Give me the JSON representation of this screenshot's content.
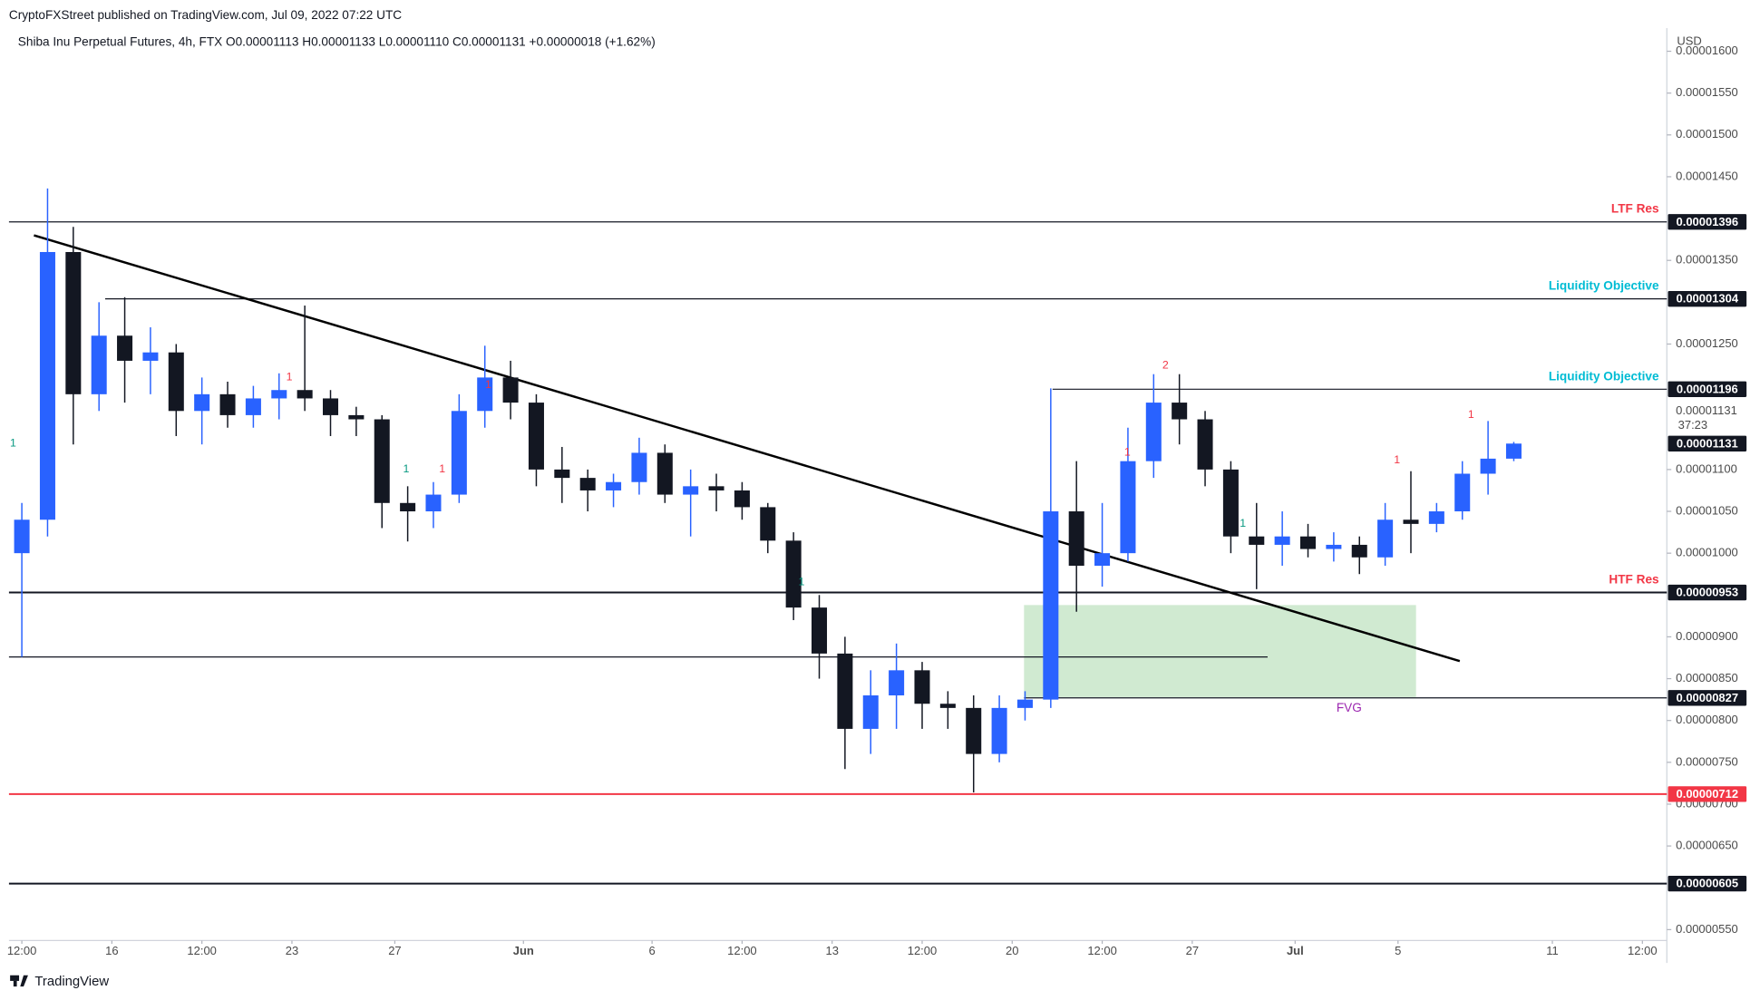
{
  "published": "CryptoFXStreet published on TradingView.com, Jul 09, 2022 07:22 UTC",
  "footer": "TradingView",
  "chart_data": {
    "type": "candlestick",
    "title": "Shiba Inu Perpetual Futures, 4h, FTX  O0.00001113  H0.00001133  L0.00001110  C0.00001131  +0.00000018 (+1.62%)",
    "currency": "USD",
    "up_color": "#2962ff",
    "down_color": "#131722",
    "grid": false,
    "xlim": [
      0,
      64.45
    ],
    "xticks": [
      {
        "value": 0.5,
        "label": "12:00"
      },
      {
        "value": 4,
        "label": "16"
      },
      {
        "value": 7.5,
        "label": "12:00"
      },
      {
        "value": 11,
        "label": "23"
      },
      {
        "value": 15,
        "label": "27"
      },
      {
        "value": 20,
        "label": "Jun"
      },
      {
        "value": 25,
        "label": "6"
      },
      {
        "value": 28.5,
        "label": "12:00"
      },
      {
        "value": 32,
        "label": "13"
      },
      {
        "value": 35.5,
        "label": "12:00"
      },
      {
        "value": 39,
        "label": "20"
      },
      {
        "value": 42.5,
        "label": "12:00"
      },
      {
        "value": 46,
        "label": "27"
      },
      {
        "value": 50,
        "label": "Jul"
      },
      {
        "value": 54,
        "label": "5"
      },
      {
        "value": 60,
        "label": "11"
      },
      {
        "value": 63.5,
        "label": "12:00"
      }
    ],
    "ylim": [
      5.37e-06,
      1.621e-05
    ],
    "yticks": [
      {
        "value": 1.6e-05,
        "label": "0.00001600"
      },
      {
        "value": 1.55e-05,
        "label": "0.00001550"
      },
      {
        "value": 1.5e-05,
        "label": "0.00001500"
      },
      {
        "value": 1.45e-05,
        "label": "0.00001450"
      },
      {
        "value": 1.35e-05,
        "label": "0.00001350"
      },
      {
        "value": 1.25e-05,
        "label": "0.00001250"
      },
      {
        "value": 1.1e-05,
        "label": "0.00001100"
      },
      {
        "value": 1.05e-05,
        "label": "0.00001050"
      },
      {
        "value": 1e-05,
        "label": "0.00001000"
      },
      {
        "value": 9e-06,
        "label": "0.00000900"
      },
      {
        "value": 8.5e-06,
        "label": "0.00000850"
      },
      {
        "value": 8e-06,
        "label": "0.00000800"
      },
      {
        "value": 7.5e-06,
        "label": "0.00000750"
      },
      {
        "value": 7e-06,
        "label": "0.00000700"
      },
      {
        "value": 6.5e-06,
        "label": "0.00000650"
      },
      {
        "value": 5.5e-06,
        "label": "0.00000550"
      }
    ],
    "open": [
      1e-05,
      1.04e-05,
      1.36e-05,
      1.19e-05,
      1.26e-05,
      1.23e-05,
      1.24e-05,
      1.17e-05,
      1.19e-05,
      1.165e-05,
      1.185e-05,
      1.195e-05,
      1.185e-05,
      1.165e-05,
      1.16e-05,
      1.06e-05,
      1.05e-05,
      1.07e-05,
      1.17e-05,
      1.21e-05,
      1.18e-05,
      1.1e-05,
      1.09e-05,
      1.075e-05,
      1.085e-05,
      1.12e-05,
      1.07e-05,
      1.08e-05,
      1.075e-05,
      1.055e-05,
      1.015e-05,
      9.35e-06,
      8.8e-06,
      7.9e-06,
      8.3e-06,
      8.6e-06,
      8.2e-06,
      8.15e-06,
      7.6e-06,
      8.15e-06,
      8.25e-06,
      1.05e-05,
      9.85e-06,
      1e-05,
      1.11e-05,
      1.18e-05,
      1.16e-05,
      1.1e-05,
      1.02e-05,
      1.01e-05,
      1.02e-05,
      1.005e-05,
      1.01e-05,
      9.95e-06,
      1.04e-05,
      1.035e-05,
      1.05e-05,
      1.095e-05,
      1.113e-05
    ],
    "high": [
      1.06e-05,
      1.436e-05,
      1.39e-05,
      1.3e-05,
      1.306e-05,
      1.27e-05,
      1.25e-05,
      1.21e-05,
      1.205e-05,
      1.2e-05,
      1.215e-05,
      1.296e-05,
      1.195e-05,
      1.175e-05,
      1.165e-05,
      1.08e-05,
      1.085e-05,
      1.19e-05,
      1.248e-05,
      1.23e-05,
      1.19e-05,
      1.127e-05,
      1.1e-05,
      1.095e-05,
      1.138e-05,
      1.13e-05,
      1.1e-05,
      1.095e-05,
      1.085e-05,
      1.06e-05,
      1.025e-05,
      9.5e-06,
      9e-06,
      8.6e-06,
      8.92e-06,
      8.7e-06,
      8.35e-06,
      8.3e-06,
      8.3e-06,
      8.35e-06,
      1.197e-05,
      1.11e-05,
      1.06e-05,
      1.15e-05,
      1.214e-05,
      1.214e-05,
      1.17e-05,
      1.11e-05,
      1.06e-05,
      1.05e-05,
      1.035e-05,
      1.025e-05,
      1.02e-05,
      1.06e-05,
      1.098e-05,
      1.06e-05,
      1.11e-05,
      1.158e-05,
      1.133e-05
    ],
    "low": [
      8.76e-06,
      1.02e-05,
      1.13e-05,
      1.17e-05,
      1.18e-05,
      1.19e-05,
      1.14e-05,
      1.13e-05,
      1.15e-05,
      1.15e-05,
      1.16e-05,
      1.17e-05,
      1.14e-05,
      1.14e-05,
      1.03e-05,
      1.014e-05,
      1.03e-05,
      1.06e-05,
      1.15e-05,
      1.16e-05,
      1.08e-05,
      1.06e-05,
      1.05e-05,
      1.055e-05,
      1.07e-05,
      1.06e-05,
      1.02e-05,
      1.05e-05,
      1.04e-05,
      1e-05,
      9.2e-06,
      8.5e-06,
      7.42e-06,
      7.6e-06,
      7.9e-06,
      7.9e-06,
      7.9e-06,
      7.14e-06,
      7.5e-06,
      8e-06,
      8.15e-06,
      9.3e-06,
      9.6e-06,
      9.9e-06,
      1.09e-05,
      1.13e-05,
      1.08e-05,
      1e-05,
      9.57e-06,
      9.85e-06,
      9.95e-06,
      9.9e-06,
      9.75e-06,
      9.85e-06,
      1e-05,
      1.025e-05,
      1.04e-05,
      1.07e-05,
      1.11e-05
    ],
    "close": [
      1.04e-05,
      1.36e-05,
      1.19e-05,
      1.26e-05,
      1.23e-05,
      1.24e-05,
      1.17e-05,
      1.19e-05,
      1.165e-05,
      1.185e-05,
      1.195e-05,
      1.185e-05,
      1.165e-05,
      1.16e-05,
      1.06e-05,
      1.05e-05,
      1.07e-05,
      1.17e-05,
      1.21e-05,
      1.18e-05,
      1.1e-05,
      1.09e-05,
      1.075e-05,
      1.085e-05,
      1.12e-05,
      1.07e-05,
      1.08e-05,
      1.075e-05,
      1.055e-05,
      1.015e-05,
      9.35e-06,
      8.8e-06,
      7.9e-06,
      8.3e-06,
      8.6e-06,
      8.2e-06,
      8.15e-06,
      7.6e-06,
      8.15e-06,
      8.25e-06,
      1.05e-05,
      9.85e-06,
      1e-05,
      1.11e-05,
      1.18e-05,
      1.16e-05,
      1.1e-05,
      1.02e-05,
      1.01e-05,
      1.02e-05,
      1.005e-05,
      1.01e-05,
      9.95e-06,
      1.04e-05,
      1.035e-05,
      1.05e-05,
      1.095e-05,
      1.113e-05,
      1.131e-05
    ],
    "last_price": 1.131e-05,
    "countdown": "37:23",
    "levels": [
      {
        "value": 1.396e-05,
        "label": "LTF Res",
        "label_color": "#f23645",
        "color": "#131722",
        "x_from": 0,
        "x_to": 64.45,
        "boxed": true
      },
      {
        "value": 1.304e-05,
        "label": "Liquidity Objective",
        "label_color": "#00bcd4",
        "color": "#131722",
        "x_from": 3.74,
        "x_to": 64.45,
        "boxed": true
      },
      {
        "value": 1.196e-05,
        "label": "Liquidity Objective",
        "label_color": "#00bcd4",
        "color": "#131722",
        "x_from": 40.57,
        "x_to": 64.45,
        "boxed": true
      },
      {
        "value": 9.53e-06,
        "label": "HTF Res",
        "label_color": "#f23645",
        "color": "#131722",
        "x_from": 0,
        "x_to": 64.45,
        "boxed": true,
        "bold": true
      },
      {
        "value": 8.76e-06,
        "color": "#131722",
        "x_from": 0,
        "x_to": 48.93,
        "boxed": false
      },
      {
        "value": 8.27e-06,
        "color": "#131722",
        "x_from": 39.46,
        "x_to": 64.45,
        "boxed": true
      },
      {
        "value": 7.12e-06,
        "color": "#f23645",
        "x_from": 0,
        "x_to": 64.45,
        "boxed": true,
        "bold": true
      },
      {
        "value": 6.05e-06,
        "color": "#131722",
        "x_from": 0,
        "x_to": 64.45,
        "boxed": true,
        "bold": true
      }
    ],
    "zone": {
      "label": "FVG",
      "label_color": "#9c27b0",
      "color": "#c8e6c9",
      "y_low": 8.28e-06,
      "y_high": 9.38e-06,
      "x_from": 39.46,
      "x_to": 54.7
    },
    "trendline": {
      "color": "#000000",
      "x": [
        0.97,
        56.4
      ],
      "y": [
        1.38e-05,
        8.71e-06
      ]
    },
    "counters": [
      {
        "text": "1",
        "color": "#089981",
        "x": 0.16,
        "y": 1.131e-05
      },
      {
        "text": "1",
        "color": "#f23645",
        "x": 10.9,
        "y": 1.21e-05
      },
      {
        "text": "1",
        "color": "#089981",
        "x": 15.44,
        "y": 1.1e-05
      },
      {
        "text": "1",
        "color": "#f23645",
        "x": 16.84,
        "y": 1.1e-05
      },
      {
        "text": "1",
        "color": "#f23645",
        "x": 18.63,
        "y": 1.201e-05
      },
      {
        "text": "1",
        "color": "#089981",
        "x": 30.81,
        "y": 9.65e-06
      },
      {
        "text": "1",
        "color": "#f23645",
        "x": 43.48,
        "y": 1.12e-05
      },
      {
        "text": "2",
        "color": "#f23645",
        "x": 44.96,
        "y": 1.224e-05
      },
      {
        "text": "1",
        "color": "#089981",
        "x": 47.97,
        "y": 1.035e-05
      },
      {
        "text": "1",
        "color": "#f23645",
        "x": 53.96,
        "y": 1.111e-05
      },
      {
        "text": "1",
        "color": "#f23645",
        "x": 56.84,
        "y": 1.165e-05
      }
    ]
  }
}
